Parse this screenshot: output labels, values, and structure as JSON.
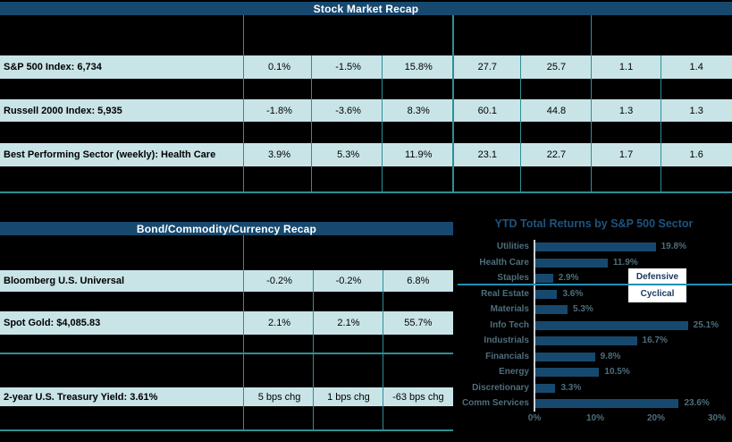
{
  "stock_table": {
    "title": "Stock Market Recap",
    "rows": [
      {
        "label": "S&P 500 Index: 6,734",
        "values": [
          "0.1%",
          "-1.5%",
          "15.8%",
          "27.7",
          "25.7",
          "1.1",
          "1.4"
        ]
      },
      {
        "label": "Russell 2000 Index: 5,935",
        "values": [
          "-1.8%",
          "-3.6%",
          "8.3%",
          "60.1",
          "44.8",
          "1.3",
          "1.3"
        ]
      },
      {
        "label": "Best Performing Sector (weekly): Health Care",
        "values": [
          "3.9%",
          "5.3%",
          "11.9%",
          "23.1",
          "22.7",
          "1.7",
          "1.6"
        ]
      }
    ]
  },
  "bond_table": {
    "title": "Bond/Commodity/Currency Recap",
    "rows": [
      {
        "label": "Bloomberg U.S. Universal",
        "values": [
          "-0.2%",
          "-0.2%",
          "6.8%"
        ]
      },
      {
        "label": "Spot Gold: $4,085.83",
        "values": [
          "2.1%",
          "2.1%",
          "55.7%"
        ]
      },
      {
        "label": "2-year U.S. Treasury Yield: 3.61%",
        "values": [
          "5 bps chg",
          "1 bps chg",
          "-63 bps chg"
        ]
      }
    ]
  },
  "chart_data": {
    "type": "bar",
    "orientation": "horizontal",
    "title": "YTD Total Returns by S&P 500 Sector",
    "categories": [
      "Utilities",
      "Health Care",
      "Staples",
      "Real Estate",
      "Materials",
      "Info Tech",
      "Industrials",
      "Financials",
      "Energy",
      "Discretionary",
      "Comm Services"
    ],
    "values": [
      19.8,
      11.9,
      2.9,
      3.6,
      5.3,
      25.1,
      16.7,
      9.8,
      10.5,
      3.3,
      23.6
    ],
    "value_labels": [
      "19.8%",
      "11.9%",
      "2.9%",
      "3.6%",
      "5.3%",
      "25.1%",
      "16.7%",
      "9.8%",
      "10.5%",
      "3.3%",
      "23.6%"
    ],
    "x_ticks": [
      "0%",
      "10%",
      "20%",
      "30%"
    ],
    "xlim": [
      0,
      30
    ],
    "grid": false,
    "annotations": [
      "Defensive",
      "Cyclical"
    ],
    "annotation_note": "teal horizontal divider separates defensive sectors (top 3) from cyclical sectors"
  },
  "colors": {
    "background": "#000000",
    "header_bar": "#17496F",
    "row_fill": "#C9E4E7",
    "table_grid": "#2E8F96",
    "bar_fill": "#17496F",
    "chart_title_text": "#1E5380",
    "chart_label_text": "#4E6E7C",
    "sector_divider_line": "#2090B8",
    "annotation_text": "#17375E",
    "annotation_box": "#FFFFFF"
  }
}
